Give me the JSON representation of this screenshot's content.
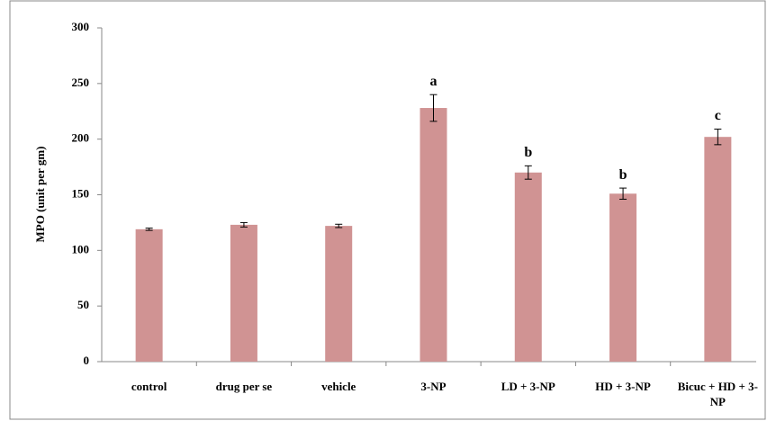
{
  "chart_data": {
    "type": "bar",
    "ylabel": "MPO (unit per gm)",
    "categories": [
      "control",
      "drug per se",
      "vehicle",
      "3-NP",
      "LD + 3-NP",
      "HD + 3-NP",
      "Bicuc + HD + 3-NP"
    ],
    "values": [
      119,
      123,
      122,
      228,
      170,
      151,
      202
    ],
    "errors": [
      1,
      2,
      1.5,
      12,
      6,
      5,
      7
    ],
    "annotations": [
      null,
      null,
      null,
      "a",
      "b",
      "b",
      "c"
    ],
    "color": "#d09393",
    "ylim": [
      0,
      300
    ],
    "yticks": [
      0,
      50,
      100,
      150,
      200,
      250,
      300
    ],
    "grid": false
  }
}
